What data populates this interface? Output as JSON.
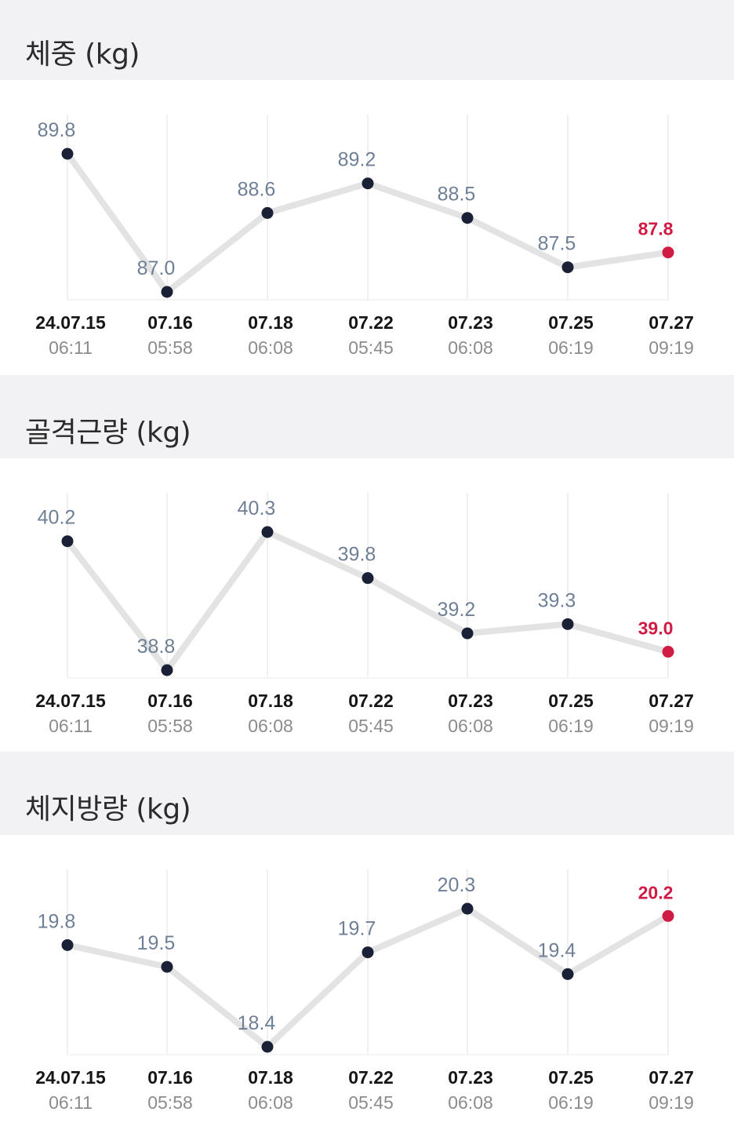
{
  "colors": {
    "line": "#e3e3e3",
    "point": "#1a2036",
    "last_point": "#d01c45",
    "value_text": "#6f8096",
    "grid": "#ececec"
  },
  "x_labels": [
    {
      "date": "24.07.15",
      "time": "06:11"
    },
    {
      "date": "07.16",
      "time": "05:58"
    },
    {
      "date": "07.18",
      "time": "06:08"
    },
    {
      "date": "07.22",
      "time": "05:45"
    },
    {
      "date": "07.23",
      "time": "06:08"
    },
    {
      "date": "07.25",
      "time": "06:19"
    },
    {
      "date": "07.27",
      "time": "09:19"
    }
  ],
  "sections": [
    {
      "title": "체중 (kg)"
    },
    {
      "title": "골격근량 (kg)"
    },
    {
      "title": "체지방량 (kg)"
    }
  ],
  "chart_data": [
    {
      "type": "line",
      "title": "체중 (kg)",
      "categories": [
        "24.07.15 06:11",
        "07.16 05:58",
        "07.18 06:08",
        "07.22 05:45",
        "07.23 06:08",
        "07.25 06:19",
        "07.27 09:19"
      ],
      "values": [
        89.8,
        87.0,
        88.6,
        89.2,
        88.5,
        87.5,
        87.8
      ],
      "value_labels": [
        "89.8",
        "87.0",
        "88.6",
        "89.2",
        "88.5",
        "87.5",
        "87.8"
      ],
      "highlight_last": true
    },
    {
      "type": "line",
      "title": "골격근량 (kg)",
      "categories": [
        "24.07.15 06:11",
        "07.16 05:58",
        "07.18 06:08",
        "07.22 05:45",
        "07.23 06:08",
        "07.25 06:19",
        "07.27 09:19"
      ],
      "values": [
        40.2,
        38.8,
        40.3,
        39.8,
        39.2,
        39.3,
        39.0
      ],
      "value_labels": [
        "40.2",
        "38.8",
        "40.3",
        "39.8",
        "39.2",
        "39.3",
        "39.0"
      ],
      "highlight_last": true
    },
    {
      "type": "line",
      "title": "체지방량 (kg)",
      "categories": [
        "24.07.15 06:11",
        "07.16 05:58",
        "07.18 06:08",
        "07.22 05:45",
        "07.23 06:08",
        "07.25 06:19",
        "07.27 09:19"
      ],
      "values": [
        19.8,
        19.5,
        18.4,
        19.7,
        20.3,
        19.4,
        20.2
      ],
      "value_labels": [
        "19.8",
        "19.5",
        "18.4",
        "19.7",
        "20.3",
        "19.4",
        "20.2"
      ],
      "highlight_last": true
    }
  ]
}
